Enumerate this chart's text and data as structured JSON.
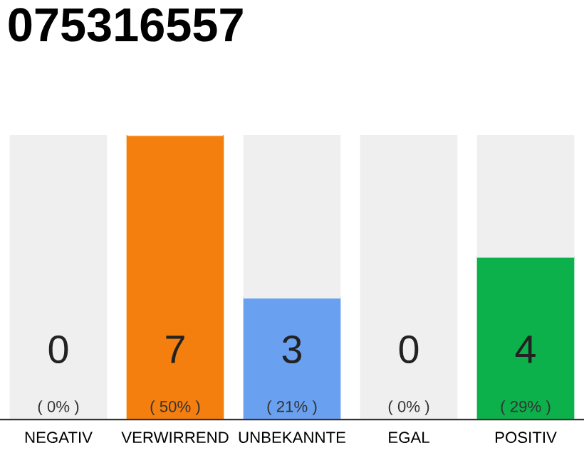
{
  "chart_data": {
    "type": "bar",
    "title": "075316557",
    "categories": [
      "NEGATIV",
      "VERWIRREND",
      "UNBEKANNTE",
      "EGAL",
      "POSITIV"
    ],
    "stacked": true,
    "series": [
      {
        "color": "#f57f0e",
        "colors": [
          "#efefef",
          "#f57f0e",
          "#6aa0f0",
          "#efefef",
          "#0db14b"
        ],
        "values": [
          0,
          7,
          3,
          0,
          4
        ],
        "value_labels": [
          "0\n( 0% )",
          "7\n( 50% )",
          "3\n( 21% )",
          "0\n( 0% )",
          "4\n( 29% )"
        ]
      },
      {
        "color": "#efefef",
        "values": [
          7,
          0,
          4,
          7,
          3
        ]
      }
    ],
    "ylim": [
      0,
      7
    ],
    "grid": false,
    "legend": false
  }
}
